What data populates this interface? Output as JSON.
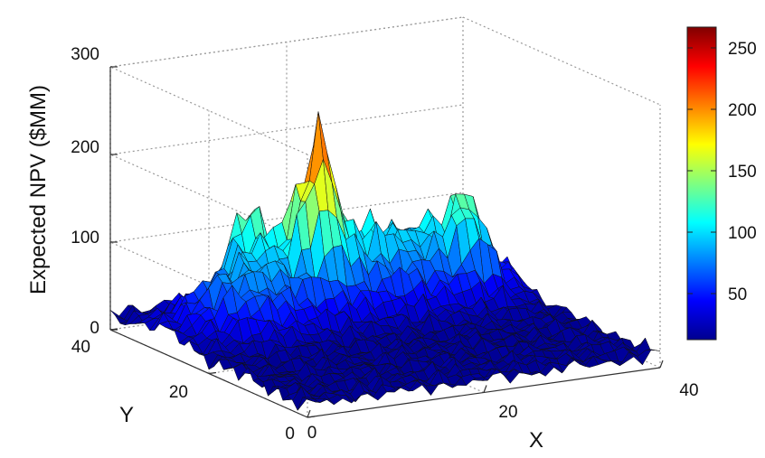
{
  "chart_data": {
    "type": "surface",
    "zlabel": "Expected NPV ($MM)",
    "xlabel": "X",
    "ylabel": "Y",
    "xlim": [
      0,
      40
    ],
    "ylim": [
      0,
      40
    ],
    "zlim": [
      0,
      300
    ],
    "x_ticks": [
      "0",
      "20",
      "40"
    ],
    "y_ticks": [
      "0",
      "20",
      "40"
    ],
    "z_ticks": [
      "0",
      "100",
      "200",
      "300"
    ],
    "grid": true,
    "colormap": "jet",
    "colorbar": {
      "range": [
        10,
        265
      ],
      "ticks": [
        "50",
        "100",
        "150",
        "200",
        "250"
      ],
      "placement": "right"
    },
    "peaks": [
      {
        "x": 18,
        "y": 30,
        "z": 240
      },
      {
        "x": 12,
        "y": 34,
        "z": 170
      },
      {
        "x": 34,
        "y": 28,
        "z": 170
      },
      {
        "x": 24,
        "y": 30,
        "z": 110
      }
    ],
    "baseline_level": 15
  }
}
